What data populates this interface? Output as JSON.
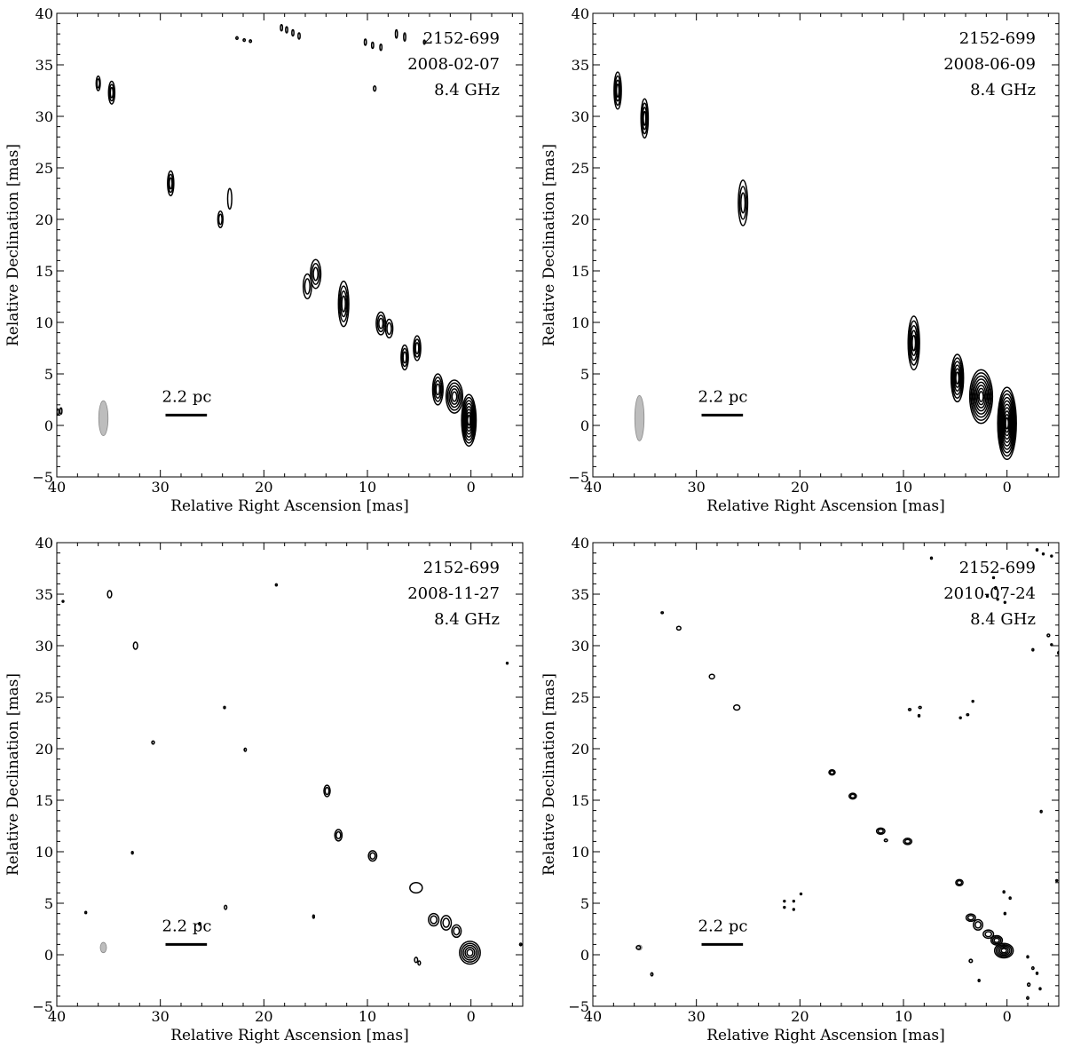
{
  "chart_data": [
    {
      "type": "contour",
      "source": "2152-699",
      "date": "2008-02-07",
      "frequency": "8.4 GHz",
      "xlabel": "Relative Right Ascension [mas]",
      "ylabel": "Relative Declination [mas]",
      "xlim": [
        40,
        -5
      ],
      "ylim": [
        -5,
        40
      ],
      "xticks": [
        "40",
        "30",
        "20",
        "10",
        "0"
      ],
      "yticks": [
        "−5",
        "0",
        "5",
        "10",
        "15",
        "20",
        "25",
        "30",
        "35",
        "40"
      ],
      "scale_bar": {
        "label": "2.2 pc",
        "ra_from": 29.5,
        "ra_to": 25.5,
        "dec": 1
      },
      "beam": {
        "ra": 35.5,
        "dec": 0.7,
        "major": 1.7,
        "minor": 0.45
      },
      "components": [
        {
          "ra": 0.2,
          "dec": 0.5,
          "rx": 0.7,
          "ry": 2.5,
          "levels": 8
        },
        {
          "ra": 1.6,
          "dec": 2.8,
          "rx": 0.8,
          "ry": 1.6,
          "levels": 5
        },
        {
          "ra": 3.2,
          "dec": 3.5,
          "rx": 0.5,
          "ry": 1.5,
          "levels": 4
        },
        {
          "ra": 5.2,
          "dec": 7.5,
          "rx": 0.35,
          "ry": 1.2,
          "levels": 3
        },
        {
          "ra": 6.4,
          "dec": 6.6,
          "rx": 0.35,
          "ry": 1.2,
          "levels": 3
        },
        {
          "ra": 8.7,
          "dec": 9.9,
          "rx": 0.45,
          "ry": 1.1,
          "levels": 3
        },
        {
          "ra": 7.9,
          "dec": 9.4,
          "rx": 0.35,
          "ry": 0.9,
          "levels": 2
        },
        {
          "ra": 12.3,
          "dec": 11.8,
          "rx": 0.5,
          "ry": 2.2,
          "levels": 4
        },
        {
          "ra": 15.0,
          "dec": 14.7,
          "rx": 0.5,
          "ry": 1.4,
          "levels": 3
        },
        {
          "ra": 15.8,
          "dec": 13.5,
          "rx": 0.4,
          "ry": 1.2,
          "levels": 2
        },
        {
          "ra": 24.2,
          "dec": 20.0,
          "rx": 0.25,
          "ry": 0.8,
          "levels": 2
        },
        {
          "ra": 23.3,
          "dec": 22.0,
          "rx": 0.2,
          "ry": 1.0,
          "levels": 1
        },
        {
          "ra": 29.0,
          "dec": 23.5,
          "rx": 0.3,
          "ry": 1.2,
          "levels": 3
        },
        {
          "ra": 34.7,
          "dec": 32.3,
          "rx": 0.3,
          "ry": 1.1,
          "levels": 3
        },
        {
          "ra": 36.0,
          "dec": 33.2,
          "rx": 0.2,
          "ry": 0.7,
          "levels": 2
        },
        {
          "ra": 9.3,
          "dec": 32.7,
          "rx": 0.12,
          "ry": 0.25,
          "levels": 1
        },
        {
          "ra": 39.6,
          "dec": 1.4,
          "rx": 0.1,
          "ry": 0.3,
          "levels": 1
        },
        {
          "ra": 39.9,
          "dec": 1.3,
          "rx": 0.1,
          "ry": 0.3,
          "levels": 1
        },
        {
          "ra": 18.3,
          "dec": 38.6,
          "rx": 0.1,
          "ry": 0.3,
          "levels": 1
        },
        {
          "ra": 17.8,
          "dec": 38.4,
          "rx": 0.1,
          "ry": 0.3,
          "levels": 1
        },
        {
          "ra": 17.2,
          "dec": 38.1,
          "rx": 0.1,
          "ry": 0.3,
          "levels": 1
        },
        {
          "ra": 16.6,
          "dec": 37.8,
          "rx": 0.1,
          "ry": 0.3,
          "levels": 1
        },
        {
          "ra": 10.2,
          "dec": 37.2,
          "rx": 0.1,
          "ry": 0.3,
          "levels": 1
        },
        {
          "ra": 9.5,
          "dec": 36.9,
          "rx": 0.1,
          "ry": 0.3,
          "levels": 1
        },
        {
          "ra": 8.7,
          "dec": 36.7,
          "rx": 0.1,
          "ry": 0.3,
          "levels": 1
        },
        {
          "ra": 7.2,
          "dec": 38.0,
          "rx": 0.1,
          "ry": 0.4,
          "levels": 1
        },
        {
          "ra": 6.4,
          "dec": 37.7,
          "rx": 0.1,
          "ry": 0.4,
          "levels": 1
        },
        {
          "ra": 4.5,
          "dec": 37.2,
          "rx": 0.08,
          "ry": 0.2,
          "levels": 1
        },
        {
          "ra": 22.6,
          "dec": 37.6,
          "rx": 0.1,
          "ry": 0.12,
          "levels": 1
        },
        {
          "ra": 21.9,
          "dec": 37.4,
          "rx": 0.1,
          "ry": 0.12,
          "levels": 1
        },
        {
          "ra": 21.3,
          "dec": 37.3,
          "rx": 0.1,
          "ry": 0.12,
          "levels": 1
        }
      ]
    },
    {
      "type": "contour",
      "source": "2152-699",
      "date": "2008-06-09",
      "frequency": "8.4 GHz",
      "xlabel": "Relative Right Ascension [mas]",
      "ylabel": "Relative Declination [mas]",
      "xlim": [
        40,
        -5
      ],
      "ylim": [
        -5,
        40
      ],
      "xticks": [
        "40",
        "30",
        "20",
        "10",
        "0"
      ],
      "yticks": [
        "−5",
        "0",
        "5",
        "10",
        "15",
        "20",
        "25",
        "30",
        "35",
        "40"
      ],
      "scale_bar": {
        "label": "2.2 pc",
        "ra_from": 29.5,
        "ra_to": 25.5,
        "dec": 1
      },
      "beam": {
        "ra": 35.5,
        "dec": 0.7,
        "major": 2.2,
        "minor": 0.45
      },
      "components": [
        {
          "ra": 0.0,
          "dec": 0.2,
          "rx": 0.9,
          "ry": 3.5,
          "levels": 10
        },
        {
          "ra": 2.5,
          "dec": 2.8,
          "rx": 1.1,
          "ry": 2.6,
          "levels": 8
        },
        {
          "ra": 4.8,
          "dec": 4.6,
          "rx": 0.6,
          "ry": 2.3,
          "levels": 6
        },
        {
          "ra": 9.0,
          "dec": 8.0,
          "rx": 0.55,
          "ry": 2.6,
          "levels": 5
        },
        {
          "ra": 25.5,
          "dec": 21.6,
          "rx": 0.45,
          "ry": 2.2,
          "levels": 3
        },
        {
          "ra": 35.0,
          "dec": 29.8,
          "rx": 0.35,
          "ry": 1.9,
          "levels": 4
        },
        {
          "ra": 37.6,
          "dec": 32.5,
          "rx": 0.35,
          "ry": 1.8,
          "levels": 4
        }
      ]
    },
    {
      "type": "contour",
      "source": "2152-699",
      "date": "2008-11-27",
      "frequency": "8.4 GHz",
      "xlabel": "Relative Right Ascension [mas]",
      "ylabel": "Relative Declination [mas]",
      "xlim": [
        40,
        -5
      ],
      "ylim": [
        -5,
        40
      ],
      "xticks": [
        "40",
        "30",
        "20",
        "10",
        "0"
      ],
      "yticks": [
        "−5",
        "0",
        "5",
        "10",
        "15",
        "20",
        "25",
        "30",
        "35",
        "40"
      ],
      "scale_bar": {
        "label": "2.2 pc",
        "ra_from": 29.5,
        "ra_to": 25.5,
        "dec": 1
      },
      "beam": {
        "ra": 35.5,
        "dec": 0.7,
        "major": 0.5,
        "minor": 0.3
      },
      "components": [
        {
          "ra": 0.1,
          "dec": 0.2,
          "rx": 1.0,
          "ry": 1.1,
          "levels": 5
        },
        {
          "ra": 1.4,
          "dec": 2.3,
          "rx": 0.45,
          "ry": 0.6,
          "levels": 2
        },
        {
          "ra": 2.4,
          "dec": 3.1,
          "rx": 0.5,
          "ry": 0.7,
          "levels": 2
        },
        {
          "ra": 3.6,
          "dec": 3.4,
          "rx": 0.5,
          "ry": 0.6,
          "levels": 2
        },
        {
          "ra": 5.3,
          "dec": 6.5,
          "rx": 0.6,
          "ry": 0.5,
          "levels": 1
        },
        {
          "ra": 9.5,
          "dec": 9.6,
          "rx": 0.4,
          "ry": 0.5,
          "levels": 2
        },
        {
          "ra": 12.8,
          "dec": 11.6,
          "rx": 0.35,
          "ry": 0.55,
          "levels": 2
        },
        {
          "ra": 13.9,
          "dec": 15.9,
          "rx": 0.3,
          "ry": 0.55,
          "levels": 2
        },
        {
          "ra": 32.4,
          "dec": 30.0,
          "rx": 0.2,
          "ry": 0.35,
          "levels": 1
        },
        {
          "ra": 34.9,
          "dec": 35.0,
          "rx": 0.2,
          "ry": 0.35,
          "levels": 1
        },
        {
          "ra": 30.7,
          "dec": 20.6,
          "rx": 0.12,
          "ry": 0.15,
          "levels": 1
        },
        {
          "ra": 21.8,
          "dec": 19.9,
          "rx": 0.1,
          "ry": 0.15,
          "levels": 1
        },
        {
          "ra": 23.8,
          "dec": 24.0,
          "rx": 0.08,
          "ry": 0.1,
          "levels": 1
        },
        {
          "ra": 18.8,
          "dec": 35.9,
          "rx": 0.08,
          "ry": 0.1,
          "levels": 1
        },
        {
          "ra": 32.7,
          "dec": 9.9,
          "rx": 0.06,
          "ry": 0.12,
          "levels": 1
        },
        {
          "ra": 23.7,
          "dec": 4.6,
          "rx": 0.12,
          "ry": 0.2,
          "levels": 1
        },
        {
          "ra": 15.2,
          "dec": 3.7,
          "rx": 0.06,
          "ry": 0.15,
          "levels": 1
        },
        {
          "ra": 37.2,
          "dec": 4.1,
          "rx": 0.06,
          "ry": 0.1,
          "levels": 1
        },
        {
          "ra": 5.3,
          "dec": -0.5,
          "rx": 0.15,
          "ry": 0.25,
          "levels": 1
        },
        {
          "ra": 5.0,
          "dec": -0.8,
          "rx": 0.12,
          "ry": 0.2,
          "levels": 1
        },
        {
          "ra": -4.8,
          "dec": 1.0,
          "rx": 0.1,
          "ry": 0.12,
          "levels": 1
        },
        {
          "ra": -3.5,
          "dec": 28.3,
          "rx": 0.05,
          "ry": 0.08,
          "levels": 1
        },
        {
          "ra": 39.4,
          "dec": 34.3,
          "rx": 0.05,
          "ry": 0.08,
          "levels": 1
        },
        {
          "ra": 26.2,
          "dec": 3.0,
          "rx": 0.1,
          "ry": 0.12,
          "levels": 1
        }
      ]
    },
    {
      "type": "contour",
      "source": "2152-699",
      "date": "2010-07-24",
      "frequency": "8.4 GHz",
      "xlabel": "Relative Right Ascension [mas]",
      "ylabel": "Relative Declination [mas]",
      "xlim": [
        40,
        -5
      ],
      "ylim": [
        -5,
        40
      ],
      "xticks": [
        "40",
        "30",
        "20",
        "10",
        "0"
      ],
      "yticks": [
        "−5",
        "0",
        "5",
        "10",
        "15",
        "20",
        "25",
        "30",
        "35",
        "40"
      ],
      "scale_bar": {
        "label": "2.2 pc",
        "ra_from": 29.5,
        "ra_to": 25.5,
        "dec": 1
      },
      "beam": {
        "ra": 35.5,
        "dec": 0.7,
        "major": 0.25,
        "minor": 0.25
      },
      "components": [
        {
          "ra": 0.3,
          "dec": 0.4,
          "rx": 0.9,
          "ry": 0.7,
          "levels": 5
        },
        {
          "ra": 1.0,
          "dec": 1.4,
          "rx": 0.55,
          "ry": 0.45,
          "levels": 3
        },
        {
          "ra": 1.8,
          "dec": 2.0,
          "rx": 0.5,
          "ry": 0.4,
          "levels": 2
        },
        {
          "ra": 2.8,
          "dec": 2.9,
          "rx": 0.45,
          "ry": 0.5,
          "levels": 2
        },
        {
          "ra": 3.5,
          "dec": 3.6,
          "rx": 0.45,
          "ry": 0.35,
          "levels": 2
        },
        {
          "ra": 4.6,
          "dec": 7.0,
          "rx": 0.35,
          "ry": 0.3,
          "levels": 2
        },
        {
          "ra": 9.6,
          "dec": 11.0,
          "rx": 0.4,
          "ry": 0.3,
          "levels": 2
        },
        {
          "ra": 12.2,
          "dec": 12.0,
          "rx": 0.4,
          "ry": 0.3,
          "levels": 2
        },
        {
          "ra": 11.7,
          "dec": 11.1,
          "rx": 0.15,
          "ry": 0.12,
          "levels": 1
        },
        {
          "ra": 14.9,
          "dec": 15.4,
          "rx": 0.35,
          "ry": 0.28,
          "levels": 2
        },
        {
          "ra": 16.9,
          "dec": 17.7,
          "rx": 0.3,
          "ry": 0.25,
          "levels": 2
        },
        {
          "ra": 26.1,
          "dec": 24.0,
          "rx": 0.3,
          "ry": 0.25,
          "levels": 1
        },
        {
          "ra": 28.5,
          "dec": 27.0,
          "rx": 0.25,
          "ry": 0.22,
          "levels": 1
        },
        {
          "ra": 31.7,
          "dec": 31.7,
          "rx": 0.2,
          "ry": 0.18,
          "levels": 1
        },
        {
          "ra": 33.3,
          "dec": 33.2,
          "rx": 0.1,
          "ry": 0.08,
          "levels": 1
        },
        {
          "ra": 34.3,
          "dec": -1.9,
          "rx": 0.1,
          "ry": 0.15,
          "levels": 1
        },
        {
          "ra": 3.5,
          "dec": -0.6,
          "rx": 0.15,
          "ry": 0.15,
          "levels": 1
        },
        {
          "ra": 2.7,
          "dec": -2.5,
          "rx": 0.08,
          "ry": 0.1,
          "levels": 1
        },
        {
          "ra": -2.0,
          "dec": -0.2,
          "rx": 0.08,
          "ry": 0.1,
          "levels": 1
        },
        {
          "ra": -2.5,
          "dec": -1.3,
          "rx": 0.1,
          "ry": 0.12,
          "levels": 1
        },
        {
          "ra": -2.1,
          "dec": -2.9,
          "rx": 0.12,
          "ry": 0.15,
          "levels": 1
        },
        {
          "ra": -2.9,
          "dec": -1.8,
          "rx": 0.08,
          "ry": 0.1,
          "levels": 1
        },
        {
          "ra": -3.2,
          "dec": -3.3,
          "rx": 0.08,
          "ry": 0.1,
          "levels": 1
        },
        {
          "ra": -2.0,
          "dec": -4.2,
          "rx": 0.1,
          "ry": 0.12,
          "levels": 1
        },
        {
          "ra": 0.3,
          "dec": 6.1,
          "rx": 0.08,
          "ry": 0.1,
          "levels": 1
        },
        {
          "ra": -0.3,
          "dec": 5.5,
          "rx": 0.08,
          "ry": 0.1,
          "levels": 1
        },
        {
          "ra": 0.2,
          "dec": 4.0,
          "rx": 0.08,
          "ry": 0.1,
          "levels": 1
        },
        {
          "ra": 9.4,
          "dec": 23.8,
          "rx": 0.12,
          "ry": 0.1,
          "levels": 1
        },
        {
          "ra": 8.4,
          "dec": 24.0,
          "rx": 0.12,
          "ry": 0.1,
          "levels": 1
        },
        {
          "ra": 8.5,
          "dec": 23.2,
          "rx": 0.08,
          "ry": 0.1,
          "levels": 1
        },
        {
          "ra": 3.8,
          "dec": 23.3,
          "rx": 0.1,
          "ry": 0.08,
          "levels": 1
        },
        {
          "ra": 3.3,
          "dec": 24.6,
          "rx": 0.06,
          "ry": 0.08,
          "levels": 1
        },
        {
          "ra": 4.5,
          "dec": 23.0,
          "rx": 0.08,
          "ry": 0.08,
          "levels": 1
        },
        {
          "ra": 20.6,
          "dec": 5.2,
          "rx": 0.06,
          "ry": 0.08,
          "levels": 1
        },
        {
          "ra": 21.5,
          "dec": 4.6,
          "rx": 0.06,
          "ry": 0.08,
          "levels": 1
        },
        {
          "ra": 20.6,
          "dec": 4.4,
          "rx": 0.06,
          "ry": 0.08,
          "levels": 1
        },
        {
          "ra": 21.5,
          "dec": 5.2,
          "rx": 0.06,
          "ry": 0.08,
          "levels": 1
        },
        {
          "ra": 19.9,
          "dec": 5.9,
          "rx": 0.06,
          "ry": 0.08,
          "levels": 1
        },
        {
          "ra": -3.3,
          "dec": 13.9,
          "rx": 0.08,
          "ry": 0.1,
          "levels": 1
        },
        {
          "ra": -4.8,
          "dec": 7.2,
          "rx": 0.06,
          "ry": 0.08,
          "levels": 1
        },
        {
          "ra": -4.0,
          "dec": 31.0,
          "rx": 0.12,
          "ry": 0.12,
          "levels": 1
        },
        {
          "ra": -5.0,
          "dec": 29.3,
          "rx": 0.1,
          "ry": 0.15,
          "levels": 1
        },
        {
          "ra": -2.5,
          "dec": 29.6,
          "rx": 0.08,
          "ry": 0.1,
          "levels": 1
        },
        {
          "ra": -4.3,
          "dec": 30.1,
          "rx": 0.06,
          "ry": 0.08,
          "levels": 1
        },
        {
          "ra": -2.9,
          "dec": 39.3,
          "rx": 0.08,
          "ry": 0.1,
          "levels": 1
        },
        {
          "ra": -3.5,
          "dec": 38.9,
          "rx": 0.06,
          "ry": 0.08,
          "levels": 1
        },
        {
          "ra": -4.3,
          "dec": 38.7,
          "rx": 0.06,
          "ry": 0.08,
          "levels": 1
        },
        {
          "ra": 7.3,
          "dec": 38.5,
          "rx": 0.08,
          "ry": 0.1,
          "levels": 1
        },
        {
          "ra": 1.1,
          "dec": 35.6,
          "rx": 0.1,
          "ry": 0.12,
          "levels": 1
        },
        {
          "ra": 1.9,
          "dec": 34.8,
          "rx": 0.06,
          "ry": 0.08,
          "levels": 1
        },
        {
          "ra": 0.9,
          "dec": 34.5,
          "rx": 0.06,
          "ry": 0.08,
          "levels": 1
        },
        {
          "ra": 0.2,
          "dec": 34.2,
          "rx": 0.06,
          "ry": 0.08,
          "levels": 1
        },
        {
          "ra": 1.3,
          "dec": 36.6,
          "rx": 0.06,
          "ry": 0.08,
          "levels": 1
        },
        {
          "ra": 35.6,
          "dec": 0.7,
          "rx": 0.2,
          "ry": 0.18,
          "levels": 1
        }
      ]
    }
  ]
}
